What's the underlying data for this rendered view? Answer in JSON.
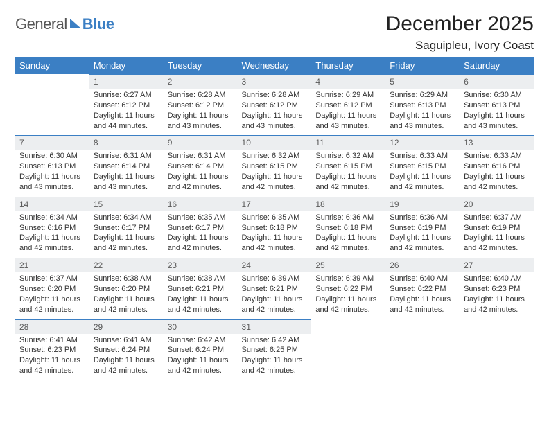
{
  "brand": {
    "part1": "General",
    "part2": "Blue"
  },
  "title": "December 2025",
  "location": "Saguipleu, Ivory Coast",
  "colors": {
    "accent": "#3b7fc4",
    "header_text": "#ffffff",
    "daynum_bg": "#eceef0",
    "daynum_text": "#5a5a5a",
    "body_text": "#333333",
    "page_bg": "#ffffff"
  },
  "day_headers": [
    "Sunday",
    "Monday",
    "Tuesday",
    "Wednesday",
    "Thursday",
    "Friday",
    "Saturday"
  ],
  "weeks": [
    [
      null,
      {
        "n": "1",
        "sunrise": "Sunrise: 6:27 AM",
        "sunset": "Sunset: 6:12 PM",
        "day1": "Daylight: 11 hours",
        "day2": "and 44 minutes."
      },
      {
        "n": "2",
        "sunrise": "Sunrise: 6:28 AM",
        "sunset": "Sunset: 6:12 PM",
        "day1": "Daylight: 11 hours",
        "day2": "and 43 minutes."
      },
      {
        "n": "3",
        "sunrise": "Sunrise: 6:28 AM",
        "sunset": "Sunset: 6:12 PM",
        "day1": "Daylight: 11 hours",
        "day2": "and 43 minutes."
      },
      {
        "n": "4",
        "sunrise": "Sunrise: 6:29 AM",
        "sunset": "Sunset: 6:12 PM",
        "day1": "Daylight: 11 hours",
        "day2": "and 43 minutes."
      },
      {
        "n": "5",
        "sunrise": "Sunrise: 6:29 AM",
        "sunset": "Sunset: 6:13 PM",
        "day1": "Daylight: 11 hours",
        "day2": "and 43 minutes."
      },
      {
        "n": "6",
        "sunrise": "Sunrise: 6:30 AM",
        "sunset": "Sunset: 6:13 PM",
        "day1": "Daylight: 11 hours",
        "day2": "and 43 minutes."
      }
    ],
    [
      {
        "n": "7",
        "sunrise": "Sunrise: 6:30 AM",
        "sunset": "Sunset: 6:13 PM",
        "day1": "Daylight: 11 hours",
        "day2": "and 43 minutes."
      },
      {
        "n": "8",
        "sunrise": "Sunrise: 6:31 AM",
        "sunset": "Sunset: 6:14 PM",
        "day1": "Daylight: 11 hours",
        "day2": "and 43 minutes."
      },
      {
        "n": "9",
        "sunrise": "Sunrise: 6:31 AM",
        "sunset": "Sunset: 6:14 PM",
        "day1": "Daylight: 11 hours",
        "day2": "and 42 minutes."
      },
      {
        "n": "10",
        "sunrise": "Sunrise: 6:32 AM",
        "sunset": "Sunset: 6:15 PM",
        "day1": "Daylight: 11 hours",
        "day2": "and 42 minutes."
      },
      {
        "n": "11",
        "sunrise": "Sunrise: 6:32 AM",
        "sunset": "Sunset: 6:15 PM",
        "day1": "Daylight: 11 hours",
        "day2": "and 42 minutes."
      },
      {
        "n": "12",
        "sunrise": "Sunrise: 6:33 AM",
        "sunset": "Sunset: 6:15 PM",
        "day1": "Daylight: 11 hours",
        "day2": "and 42 minutes."
      },
      {
        "n": "13",
        "sunrise": "Sunrise: 6:33 AM",
        "sunset": "Sunset: 6:16 PM",
        "day1": "Daylight: 11 hours",
        "day2": "and 42 minutes."
      }
    ],
    [
      {
        "n": "14",
        "sunrise": "Sunrise: 6:34 AM",
        "sunset": "Sunset: 6:16 PM",
        "day1": "Daylight: 11 hours",
        "day2": "and 42 minutes."
      },
      {
        "n": "15",
        "sunrise": "Sunrise: 6:34 AM",
        "sunset": "Sunset: 6:17 PM",
        "day1": "Daylight: 11 hours",
        "day2": "and 42 minutes."
      },
      {
        "n": "16",
        "sunrise": "Sunrise: 6:35 AM",
        "sunset": "Sunset: 6:17 PM",
        "day1": "Daylight: 11 hours",
        "day2": "and 42 minutes."
      },
      {
        "n": "17",
        "sunrise": "Sunrise: 6:35 AM",
        "sunset": "Sunset: 6:18 PM",
        "day1": "Daylight: 11 hours",
        "day2": "and 42 minutes."
      },
      {
        "n": "18",
        "sunrise": "Sunrise: 6:36 AM",
        "sunset": "Sunset: 6:18 PM",
        "day1": "Daylight: 11 hours",
        "day2": "and 42 minutes."
      },
      {
        "n": "19",
        "sunrise": "Sunrise: 6:36 AM",
        "sunset": "Sunset: 6:19 PM",
        "day1": "Daylight: 11 hours",
        "day2": "and 42 minutes."
      },
      {
        "n": "20",
        "sunrise": "Sunrise: 6:37 AM",
        "sunset": "Sunset: 6:19 PM",
        "day1": "Daylight: 11 hours",
        "day2": "and 42 minutes."
      }
    ],
    [
      {
        "n": "21",
        "sunrise": "Sunrise: 6:37 AM",
        "sunset": "Sunset: 6:20 PM",
        "day1": "Daylight: 11 hours",
        "day2": "and 42 minutes."
      },
      {
        "n": "22",
        "sunrise": "Sunrise: 6:38 AM",
        "sunset": "Sunset: 6:20 PM",
        "day1": "Daylight: 11 hours",
        "day2": "and 42 minutes."
      },
      {
        "n": "23",
        "sunrise": "Sunrise: 6:38 AM",
        "sunset": "Sunset: 6:21 PM",
        "day1": "Daylight: 11 hours",
        "day2": "and 42 minutes."
      },
      {
        "n": "24",
        "sunrise": "Sunrise: 6:39 AM",
        "sunset": "Sunset: 6:21 PM",
        "day1": "Daylight: 11 hours",
        "day2": "and 42 minutes."
      },
      {
        "n": "25",
        "sunrise": "Sunrise: 6:39 AM",
        "sunset": "Sunset: 6:22 PM",
        "day1": "Daylight: 11 hours",
        "day2": "and 42 minutes."
      },
      {
        "n": "26",
        "sunrise": "Sunrise: 6:40 AM",
        "sunset": "Sunset: 6:22 PM",
        "day1": "Daylight: 11 hours",
        "day2": "and 42 minutes."
      },
      {
        "n": "27",
        "sunrise": "Sunrise: 6:40 AM",
        "sunset": "Sunset: 6:23 PM",
        "day1": "Daylight: 11 hours",
        "day2": "and 42 minutes."
      }
    ],
    [
      {
        "n": "28",
        "sunrise": "Sunrise: 6:41 AM",
        "sunset": "Sunset: 6:23 PM",
        "day1": "Daylight: 11 hours",
        "day2": "and 42 minutes."
      },
      {
        "n": "29",
        "sunrise": "Sunrise: 6:41 AM",
        "sunset": "Sunset: 6:24 PM",
        "day1": "Daylight: 11 hours",
        "day2": "and 42 minutes."
      },
      {
        "n": "30",
        "sunrise": "Sunrise: 6:42 AM",
        "sunset": "Sunset: 6:24 PM",
        "day1": "Daylight: 11 hours",
        "day2": "and 42 minutes."
      },
      {
        "n": "31",
        "sunrise": "Sunrise: 6:42 AM",
        "sunset": "Sunset: 6:25 PM",
        "day1": "Daylight: 11 hours",
        "day2": "and 42 minutes."
      },
      null,
      null,
      null
    ]
  ]
}
